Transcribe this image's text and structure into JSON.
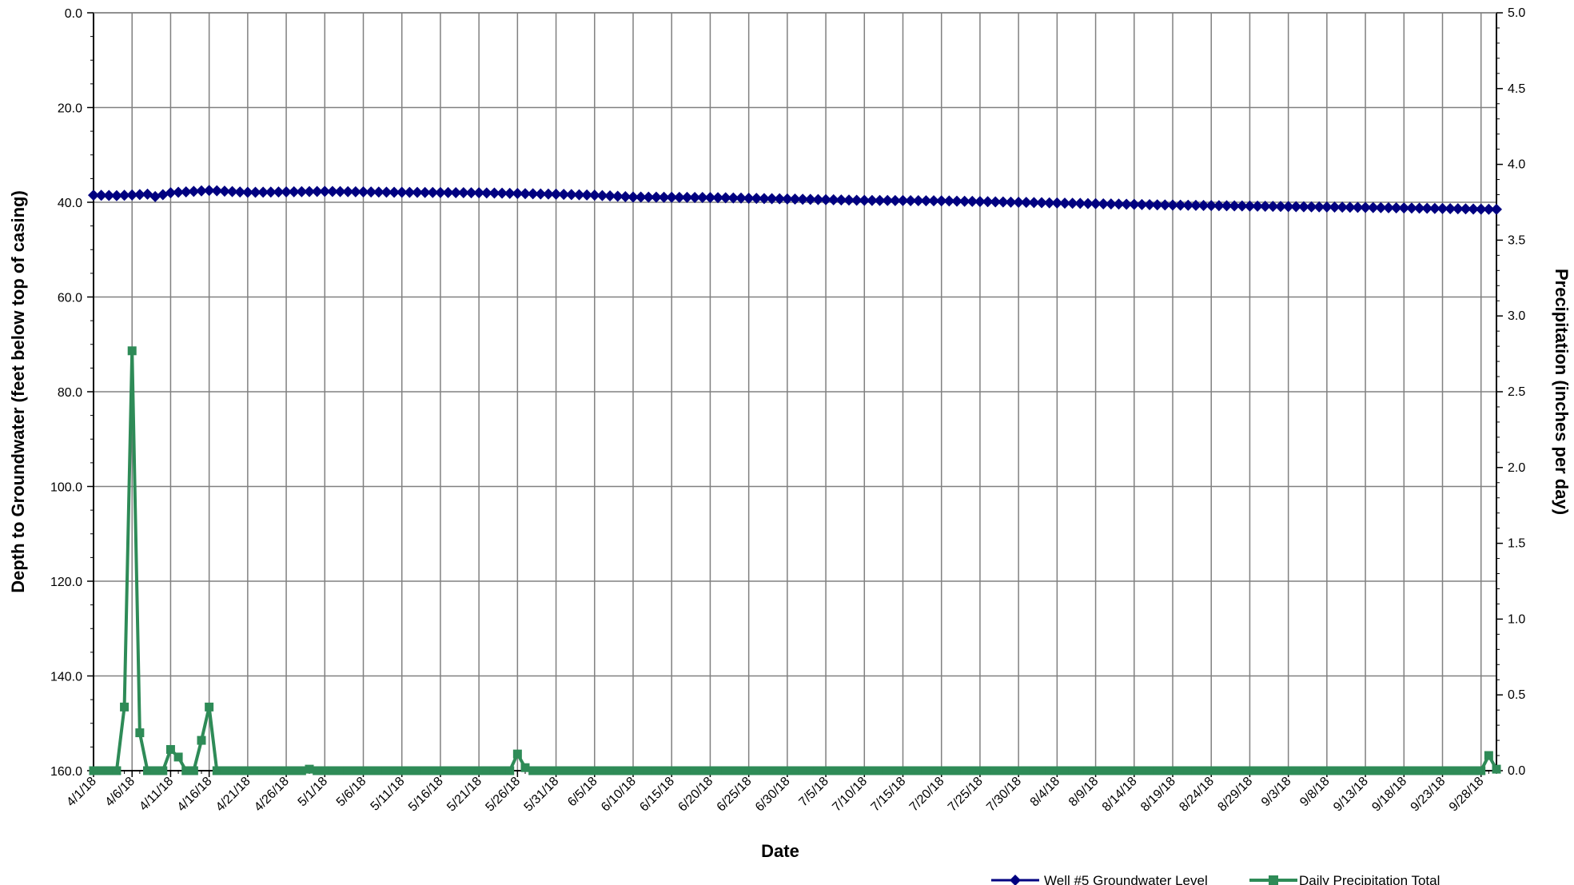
{
  "chart_data": {
    "type": "line",
    "xlabel": "Date",
    "ylabel_left": "Depth to Groundwater (feet below top of casing)",
    "ylabel_right": "Precipitation (inches per day)",
    "x_start": "4/1/18",
    "x_end": "9/30/18",
    "x_ticks": [
      "4/1/18",
      "4/6/18",
      "4/11/18",
      "4/16/18",
      "4/21/18",
      "4/26/18",
      "5/1/18",
      "5/6/18",
      "5/11/18",
      "5/16/18",
      "5/21/18",
      "5/26/18",
      "5/31/18",
      "6/5/18",
      "6/10/18",
      "6/15/18",
      "6/20/18",
      "6/25/18",
      "6/30/18",
      "7/5/18",
      "7/10/18",
      "7/15/18",
      "7/20/18",
      "7/25/18",
      "7/30/18",
      "8/4/18",
      "8/9/18",
      "8/14/18",
      "8/19/18",
      "8/24/18",
      "8/29/18",
      "9/3/18",
      "9/8/18",
      "9/13/18",
      "9/18/18",
      "9/23/18",
      "9/28/18"
    ],
    "y_left": {
      "min": 0,
      "max": 160,
      "step": 20,
      "inverted": true,
      "tick_labels": [
        "0.0",
        "20.0",
        "40.0",
        "60.0",
        "80.0",
        "100.0",
        "120.0",
        "140.0",
        "160.0"
      ]
    },
    "y_right": {
      "min": 0,
      "max": 5,
      "step": 0.5,
      "tick_labels": [
        "0.0",
        "0.5",
        "1.0",
        "1.5",
        "2.0",
        "2.5",
        "3.0",
        "3.5",
        "4.0",
        "4.5",
        "5.0"
      ]
    },
    "grid": true,
    "legend_position": "bottom-right",
    "series": [
      {
        "name": "Well #5  Groundwater Level",
        "axis": "left",
        "color": "#000080",
        "marker": "diamond",
        "anchors": [
          [
            "4/1/18",
            38.5
          ],
          [
            "4/4/18",
            38.6
          ],
          [
            "4/8/18",
            38.3
          ],
          [
            "4/9/18",
            38.8
          ],
          [
            "4/11/18",
            38.0
          ],
          [
            "4/16/18",
            37.5
          ],
          [
            "4/21/18",
            37.9
          ],
          [
            "5/1/18",
            37.7
          ],
          [
            "5/11/18",
            37.9
          ],
          [
            "5/21/18",
            38.0
          ],
          [
            "5/31/18",
            38.3
          ],
          [
            "6/5/18",
            38.5
          ],
          [
            "6/10/18",
            38.9
          ],
          [
            "6/20/18",
            39.0
          ],
          [
            "6/30/18",
            39.3
          ],
          [
            "7/10/18",
            39.6
          ],
          [
            "7/20/18",
            39.7
          ],
          [
            "7/30/18",
            40.0
          ],
          [
            "8/9/18",
            40.3
          ],
          [
            "8/19/18",
            40.6
          ],
          [
            "8/29/18",
            40.8
          ],
          [
            "9/8/18",
            41.0
          ],
          [
            "9/18/18",
            41.2
          ],
          [
            "9/30/18",
            41.5
          ]
        ]
      },
      {
        "name": "Daily Precipitation Total",
        "axis": "right",
        "color": "#2e8b57",
        "marker": "square",
        "points": [
          [
            "4/1/18",
            0
          ],
          [
            "4/2/18",
            0
          ],
          [
            "4/3/18",
            0
          ],
          [
            "4/4/18",
            0
          ],
          [
            "4/5/18",
            0.42
          ],
          [
            "4/6/18",
            2.77
          ],
          [
            "4/7/18",
            0.25
          ],
          [
            "4/8/18",
            0
          ],
          [
            "4/9/18",
            0
          ],
          [
            "4/10/18",
            0
          ],
          [
            "4/11/18",
            0.14
          ],
          [
            "4/12/18",
            0.09
          ],
          [
            "4/13/18",
            0
          ],
          [
            "4/14/18",
            0
          ],
          [
            "4/15/18",
            0.2
          ],
          [
            "4/16/18",
            0.42
          ],
          [
            "4/17/18",
            0
          ],
          [
            "4/18/18",
            0
          ],
          [
            "4/28/18",
            0
          ],
          [
            "4/29/18",
            0.01
          ],
          [
            "4/30/18",
            0
          ],
          [
            "5/25/18",
            0
          ],
          [
            "5/26/18",
            0.11
          ],
          [
            "5/27/18",
            0.02
          ],
          [
            "5/28/18",
            0
          ],
          [
            "9/28/18",
            0
          ],
          [
            "9/29/18",
            0.1
          ],
          [
            "9/30/18",
            0.01
          ]
        ]
      }
    ]
  }
}
